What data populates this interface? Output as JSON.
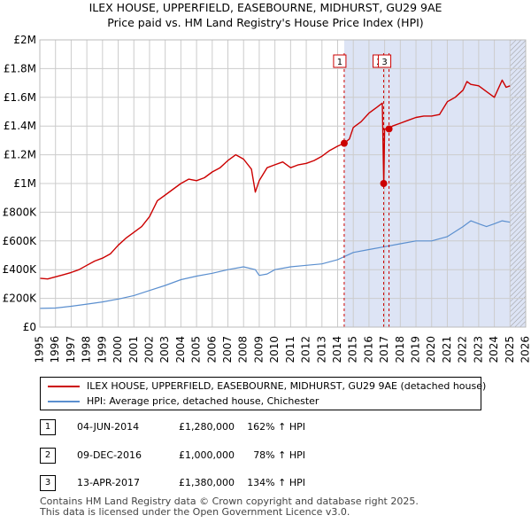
{
  "header": {
    "title_line1": "ILEX HOUSE, UPPERFIELD, EASEBOURNE, MIDHURST, GU29 9AE",
    "title_line2": "Price paid vs. HM Land Registry's House Price Index (HPI)"
  },
  "chart_data": {
    "type": "line",
    "title": "Price paid vs. HM Land Registry's House Price Index (HPI)",
    "xlabel": "",
    "ylabel": "",
    "xlim": [
      1995,
      2026
    ],
    "ylim": [
      0,
      2000000
    ],
    "x_ticks": [
      "1995",
      "1996",
      "1997",
      "1998",
      "1999",
      "2000",
      "2001",
      "2002",
      "2003",
      "2004",
      "2005",
      "2006",
      "2007",
      "2008",
      "2009",
      "2010",
      "2011",
      "2012",
      "2013",
      "2014",
      "2015",
      "2016",
      "2017",
      "2018",
      "2019",
      "2020",
      "2021",
      "2022",
      "2023",
      "2024",
      "2025",
      "2026"
    ],
    "y_ticks": [
      {
        "value": 0,
        "label": "£0"
      },
      {
        "value": 200000,
        "label": "£200K"
      },
      {
        "value": 400000,
        "label": "£400K"
      },
      {
        "value": 600000,
        "label": "£600K"
      },
      {
        "value": 800000,
        "label": "£800K"
      },
      {
        "value": 1000000,
        "label": "£1M"
      },
      {
        "value": 1200000,
        "label": "£1.2M"
      },
      {
        "value": 1400000,
        "label": "£1.4M"
      },
      {
        "value": 1600000,
        "label": "£1.6M"
      },
      {
        "value": 1800000,
        "label": "£1.8M"
      },
      {
        "value": 2000000,
        "label": "£2M"
      }
    ],
    "grid": true,
    "shaded_span": [
      2014.42,
      2026
    ],
    "hatched_from": 2025.0,
    "series": [
      {
        "name": "ILEX HOUSE, UPPERFIELD, EASEBOURNE, MIDHURST, GU29 9AE (detached house)",
        "color": "#cc0000",
        "x": [
          1995.0,
          1995.5,
          1996.0,
          1996.5,
          1997.0,
          1997.5,
          1998.0,
          1998.5,
          1999.0,
          1999.5,
          2000.0,
          2000.5,
          2001.0,
          2001.5,
          2002.0,
          2002.5,
          2003.0,
          2003.5,
          2004.0,
          2004.5,
          2005.0,
          2005.5,
          2006.0,
          2006.5,
          2007.0,
          2007.5,
          2008.0,
          2008.5,
          2008.75,
          2009.0,
          2009.5,
          2010.0,
          2010.5,
          2011.0,
          2011.5,
          2012.0,
          2012.5,
          2013.0,
          2013.5,
          2014.0,
          2014.42,
          2014.75,
          2015.0,
          2015.5,
          2016.0,
          2016.5,
          2016.85,
          2016.94,
          2017.0,
          2017.28,
          2017.5,
          2018.0,
          2018.5,
          2019.0,
          2019.5,
          2020.0,
          2020.5,
          2021.0,
          2021.5,
          2022.0,
          2022.25,
          2022.5,
          2023.0,
          2023.5,
          2024.0,
          2024.5,
          2024.75,
          2025.0
        ],
        "values": [
          340000,
          335000,
          350000,
          365000,
          380000,
          400000,
          430000,
          460000,
          480000,
          510000,
          570000,
          620000,
          660000,
          700000,
          770000,
          880000,
          920000,
          960000,
          1000000,
          1030000,
          1020000,
          1040000,
          1080000,
          1110000,
          1160000,
          1200000,
          1170000,
          1100000,
          940000,
          1020000,
          1110000,
          1130000,
          1150000,
          1110000,
          1130000,
          1140000,
          1160000,
          1190000,
          1230000,
          1260000,
          1280000,
          1310000,
          1390000,
          1430000,
          1490000,
          1530000,
          1560000,
          1000000,
          1380000,
          1380000,
          1400000,
          1420000,
          1440000,
          1460000,
          1470000,
          1470000,
          1480000,
          1570000,
          1600000,
          1650000,
          1710000,
          1690000,
          1680000,
          1640000,
          1600000,
          1720000,
          1670000,
          1680000
        ]
      },
      {
        "name": "HPI: Average price, detached house, Chichester",
        "color": "#5b8fcf",
        "x": [
          1995.0,
          1996.0,
          1997.0,
          1998.0,
          1999.0,
          2000.0,
          2001.0,
          2002.0,
          2003.0,
          2004.0,
          2005.0,
          2006.0,
          2007.0,
          2008.0,
          2008.75,
          2009.0,
          2009.5,
          2010.0,
          2011.0,
          2012.0,
          2013.0,
          2014.0,
          2015.0,
          2016.0,
          2017.0,
          2018.0,
          2019.0,
          2020.0,
          2021.0,
          2022.0,
          2022.5,
          2023.0,
          2023.5,
          2024.0,
          2024.5,
          2025.0
        ],
        "values": [
          130000,
          133000,
          145000,
          160000,
          175000,
          195000,
          220000,
          255000,
          290000,
          330000,
          355000,
          375000,
          400000,
          420000,
          400000,
          360000,
          370000,
          400000,
          420000,
          430000,
          440000,
          470000,
          520000,
          540000,
          560000,
          580000,
          600000,
          600000,
          630000,
          700000,
          740000,
          720000,
          700000,
          720000,
          740000,
          730000
        ]
      }
    ],
    "annotations": [
      {
        "label": "1",
        "x": 2014.42,
        "value": 1280000
      },
      {
        "label": "2",
        "x": 2016.94,
        "value": 1000000
      },
      {
        "label": "3",
        "x": 2017.28,
        "value": 1380000
      }
    ]
  },
  "legend": {
    "property_label": "ILEX HOUSE, UPPERFIELD, EASEBOURNE, MIDHURST, GU29 9AE (detached house)",
    "hpi_label": "HPI: Average price, detached house, Chichester"
  },
  "transactions": [
    {
      "num": "1",
      "date": "04-JUN-2014",
      "price": "£1,280,000",
      "hpi": "162% ↑ HPI"
    },
    {
      "num": "2",
      "date": "09-DEC-2016",
      "price": "£1,000,000",
      "hpi": "78% ↑ HPI"
    },
    {
      "num": "3",
      "date": "13-APR-2017",
      "price": "£1,380,000",
      "hpi": "134% ↑ HPI"
    }
  ],
  "footer": {
    "line1": "Contains HM Land Registry data © Crown copyright and database right 2025.",
    "line2": "This data is licensed under the Open Government Licence v3.0."
  },
  "colors": {
    "property": "#cc0000",
    "hpi": "#5b8fcf",
    "shade": "#dde4f5",
    "grid": "#cccccc"
  }
}
